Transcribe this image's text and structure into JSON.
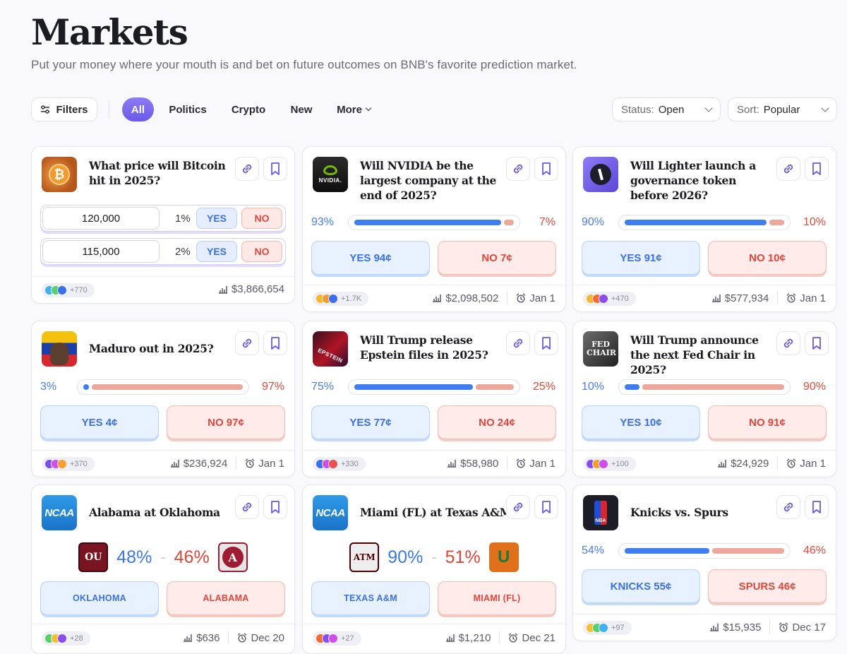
{
  "header": {
    "title": "Markets",
    "subtitle": "Put your money where your mouth is and bet on future outcomes on BNB's favorite prediction market."
  },
  "toolbar": {
    "filters_label": "Filters",
    "tabs": [
      {
        "label": "All",
        "active": true
      },
      {
        "label": "Politics",
        "active": false
      },
      {
        "label": "Crypto",
        "active": false
      },
      {
        "label": "New",
        "active": false
      },
      {
        "label": "More",
        "active": false
      }
    ],
    "status": {
      "label": "Status:",
      "value": "Open"
    },
    "sort": {
      "label": "Sort:",
      "value": "Popular"
    }
  },
  "colors": {
    "accent": "#7464ee",
    "yes": "#3d7ef0",
    "no": "#e2463a"
  },
  "cards": [
    {
      "title": "What price will Bitcoin hit in 2025?",
      "icon": "bitcoin-icon",
      "outcomes": [
        {
          "value": "120,000",
          "pct": "1%",
          "yes": "YES",
          "no": "NO"
        },
        {
          "value": "115,000",
          "pct": "2%",
          "yes": "YES",
          "no": "NO"
        }
      ],
      "traders": "+770",
      "volume": "$3,866,654"
    },
    {
      "title": "Will NVIDIA be the largest company at the end of 2025?",
      "icon": "nvidia-icon",
      "yes_pct": "93%",
      "no_pct": "7%",
      "yes_frac": 0.93,
      "yes_btn": "YES 94¢",
      "no_btn": "NO 7¢",
      "traders": "+1.7K",
      "volume": "$2,098,502",
      "date": "Jan 1"
    },
    {
      "title": "Will Lighter launch a governance token before 2026?",
      "icon": "lighter-icon",
      "yes_pct": "90%",
      "no_pct": "10%",
      "yes_frac": 0.9,
      "yes_btn": "YES 91¢",
      "no_btn": "NO 10¢",
      "traders": "+470",
      "volume": "$577,934",
      "date": "Jan 1"
    },
    {
      "title": "Maduro out in 2025?",
      "icon": "maduro-icon",
      "yes_pct": "3%",
      "no_pct": "97%",
      "yes_frac": 0.03,
      "yes_btn": "YES 4¢",
      "no_btn": "NO 97¢",
      "traders": "+370",
      "volume": "$236,924",
      "date": "Jan 1"
    },
    {
      "title": "Will Trump release Epstein files in 2025?",
      "icon": "epstein-icon",
      "icon_text": "EPSTEIN",
      "yes_pct": "75%",
      "no_pct": "25%",
      "yes_frac": 0.75,
      "yes_btn": "YES 77¢",
      "no_btn": "NO 24¢",
      "traders": "+330",
      "volume": "$58,980",
      "date": "Jan 1"
    },
    {
      "title": "Will Trump announce the next Fed Chair in 2025?",
      "icon": "fed-chair-icon",
      "icon_text": "FED CHAIR",
      "yes_pct": "10%",
      "no_pct": "90%",
      "yes_frac": 0.1,
      "yes_btn": "YES 10¢",
      "no_btn": "NO 91¢",
      "traders": "+100",
      "volume": "$24,929",
      "date": "Jan 1"
    },
    {
      "title": "Alabama at Oklahoma",
      "icon": "ncaa-icon",
      "icon_text": "NCAA",
      "home_logo": "OU",
      "away_logo": "A",
      "yes_pct": "48%",
      "no_pct": "46%",
      "yes_btn": "OKLAHOMA",
      "no_btn": "ALABAMA",
      "traders": "+28",
      "volume": "$636",
      "date": "Dec 20"
    },
    {
      "title": "Miami (FL) at Texas A&M",
      "icon": "ncaa-icon",
      "icon_text": "NCAA",
      "home_logo": "ATM",
      "away_logo": "U",
      "yes_pct": "90%",
      "no_pct": "51%",
      "yes_btn": "TEXAS A&M",
      "no_btn": "MIAMI (FL)",
      "traders": "+27",
      "volume": "$1,210",
      "date": "Dec 21"
    },
    {
      "title": "Knicks vs. Spurs",
      "icon": "nba-icon",
      "icon_text": "NBA",
      "yes_pct": "54%",
      "no_pct": "46%",
      "yes_frac": 0.54,
      "yes_btn": "KNICKS 55¢",
      "no_btn": "SPURS 46¢",
      "traders": "+97",
      "volume": "$15,935",
      "date": "Dec 17"
    }
  ]
}
